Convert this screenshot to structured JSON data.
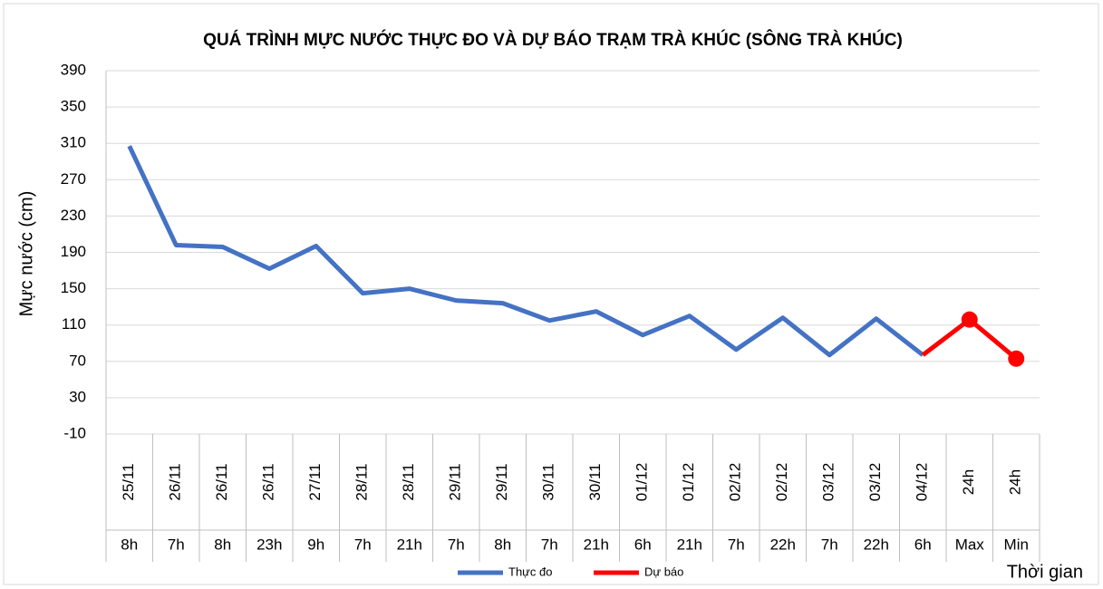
{
  "chart_data": {
    "type": "line",
    "title": "QUÁ TRÌNH MỰC NƯỚC THỰC ĐO VÀ DỰ BÁO TRẠM TRÀ KHÚC (SÔNG TRÀ KHÚC)",
    "y_label": "Mực nước (cm)",
    "x_label": "Thời gian",
    "categories": [
      "25/11",
      "26/11",
      "26/11",
      "26/11",
      "27/11",
      "28/11",
      "28/11",
      "29/11",
      "29/11",
      "30/11",
      "30/11",
      "01/12",
      "01/12",
      "02/12",
      "02/12",
      "03/12",
      "03/12",
      "04/12",
      "24h",
      "24h"
    ],
    "category_times": [
      "8h",
      "7h",
      "8h",
      "23h",
      "9h",
      "7h",
      "21h",
      "7h",
      "8h",
      "7h",
      "21h",
      "6h",
      "21h",
      "7h",
      "22h",
      "7h",
      "22h",
      "6h",
      "Max",
      "Min"
    ],
    "series": [
      {
        "name": "Thực đo",
        "color": "#4472c4",
        "values": [
          307,
          198,
          196,
          172,
          197,
          145,
          150,
          137,
          134,
          115,
          125,
          99,
          120,
          83,
          118,
          77,
          117,
          77,
          null,
          null
        ]
      },
      {
        "name": "Dự báo",
        "color": "#ff0000",
        "values": [
          null,
          null,
          null,
          null,
          null,
          null,
          null,
          null,
          null,
          null,
          null,
          null,
          null,
          null,
          null,
          null,
          null,
          77,
          116,
          73
        ]
      }
    ],
    "ylim": [
      -10,
      390
    ],
    "yticks": [
      -10,
      30,
      70,
      110,
      150,
      190,
      230,
      270,
      310,
      350,
      390
    ],
    "grid": true,
    "legend": "bottom"
  }
}
